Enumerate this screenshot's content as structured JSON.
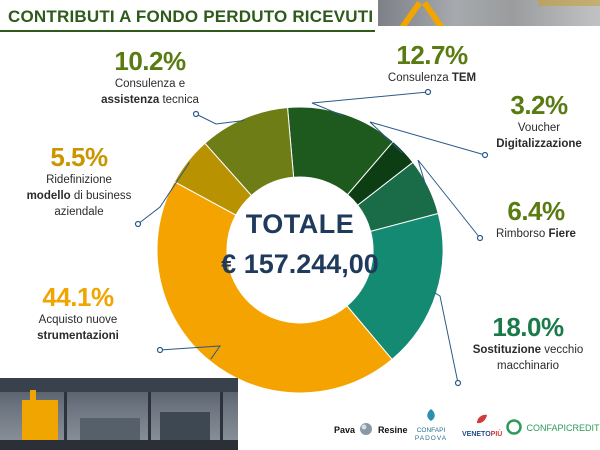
{
  "header": {
    "title": "CONTRIBUTI A FONDO PERDUTO RICEVUTI"
  },
  "center": {
    "total_label": "TOTALE",
    "total_value": "€ 157.244,00"
  },
  "labels": [
    {
      "pct": "12.7%",
      "line1": "Consulenza ",
      "line1_bold": "TEM",
      "line2_bold": "",
      "line2": "",
      "line3": ""
    },
    {
      "pct": "3.2%",
      "line1": "Voucher",
      "line1_bold": "",
      "line2_bold": "Digitalizzazione",
      "line2": "",
      "line3": ""
    },
    {
      "pct": "6.4%",
      "line1": "Rimborso ",
      "line1_bold": "Fiere",
      "line2_bold": "",
      "line2": "",
      "line3": ""
    },
    {
      "pct": "18.0%",
      "line1": "",
      "line1_bold": "Sostituzione",
      "line1_after": " vecchio",
      "line2": "macchinario",
      "line2_bold": "",
      "line3": ""
    },
    {
      "pct": "44.1%",
      "line1": "Acquisto nuove",
      "line1_bold": "",
      "line2_bold": "strumentazioni",
      "line2": "",
      "line3": ""
    },
    {
      "pct": "5.5%",
      "line1": "Ridefinizione",
      "line1_bold": "",
      "line2_bold": "modello",
      "line2": " di business",
      "line3": "aziendale"
    },
    {
      "pct": "10.2%",
      "line1": "Consulenza e",
      "line1_bold": "",
      "line2_bold": "assistenza",
      "line2": " tecnica",
      "line3": ""
    }
  ],
  "chart_data": {
    "type": "pie",
    "subtype": "donut",
    "title": "CONTRIBUTI A FONDO PERDUTO RICEVUTI",
    "center_text": [
      "TOTALE",
      "€ 157.244,00"
    ],
    "unit": "%",
    "slices": [
      {
        "label": "Consulenza TEM",
        "value": 12.7,
        "color": "#1e5a1e"
      },
      {
        "label": "Voucher Digitalizzazione",
        "value": 3.2,
        "color": "#0d3d12"
      },
      {
        "label": "Rimborso Fiere",
        "value": 6.4,
        "color": "#1a6b47"
      },
      {
        "label": "Sostituzione vecchio macchinario",
        "value": 18.0,
        "color": "#148a72"
      },
      {
        "label": "Acquisto nuove strumentazioni",
        "value": 44.1,
        "color": "#f5a300"
      },
      {
        "label": "Ridefinizione modello di business aziendale",
        "value": 5.5,
        "color": "#b89200"
      },
      {
        "label": "Consulenza e assistenza tecnica",
        "value": 10.2,
        "color": "#6f7d16"
      }
    ]
  },
  "colors": {
    "pct_text": "#5a7a12",
    "pct_text_alt": "#1a7a4a",
    "pct_text_gold": "#c99600",
    "pct_text_orange": "#f0a500",
    "leader": "#2a5a8a"
  },
  "logos": [
    {
      "name": "Pava",
      "suffix": "Resine"
    },
    {
      "name": "CONFAPI",
      "suffix": "PADOVA"
    },
    {
      "name": "VENETO",
      "suffix": "PIÙ"
    },
    {
      "name": "CONFAPICREDIT",
      "suffix": ""
    }
  ]
}
